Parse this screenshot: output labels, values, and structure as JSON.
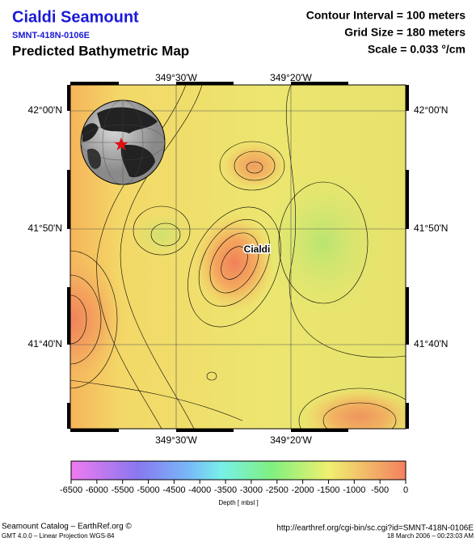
{
  "header": {
    "title": "Cialdi Seamount",
    "id": "SMNT-418N-0106E",
    "subtitle": "Predicted Bathymetric Map",
    "contour_interval": "Contour Interval = 100 meters",
    "grid_size": "Grid Size = 180 meters",
    "scale": "Scale = 0.033 °/cm"
  },
  "map": {
    "top_labels": [
      "349°30'W",
      "349°20'W"
    ],
    "bottom_labels": [
      "349°30'W",
      "349°20'W"
    ],
    "left_labels": [
      "42°00'N",
      "41°50'N",
      "41°40'N"
    ],
    "right_labels": [
      "42°00'N",
      "41°50'N",
      "41°40'N"
    ],
    "feature_label": "Cialdi"
  },
  "colorbar": {
    "ticks": [
      -6500,
      -6000,
      -5500,
      -5000,
      -4500,
      -4000,
      -3500,
      -3000,
      -2500,
      -2000,
      -1500,
      -1000,
      -500,
      0
    ],
    "label": "Depth [ mbsl ]"
  },
  "footer": {
    "source": "Seamount Catalog – EarthRef.org ©",
    "projection": "GMT 4.0.0 – Linear Projection WGS-84",
    "url": "http://earthref.org/cgi-bin/sc.cgi?id=SMNT-418N-0106E",
    "timestamp": "18 March 2006 – 00:23:03 AM"
  }
}
